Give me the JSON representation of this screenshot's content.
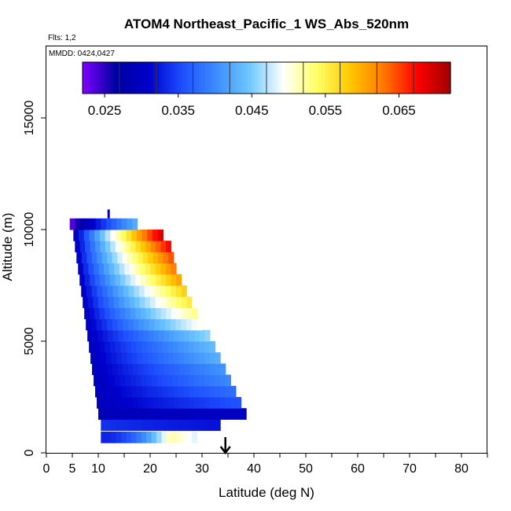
{
  "title": "ATOM4 Northeast_Pacific_1 WS_Abs_520nm",
  "flights_note": "Flts: 1,2",
  "dates_note": "MMDD: 0424,0427",
  "arrow_marker_lat": 34.5,
  "chart_data": {
    "type": "heatmap",
    "title": "ATOM4 Northeast_Pacific_1 WS_Abs_520nm",
    "xlabel": "Latitude (deg N)",
    "ylabel": "Altitude (m)",
    "xlim": [
      0,
      85
    ],
    "ylim": [
      0,
      18000
    ],
    "x_ticks": [
      0,
      5,
      10,
      20,
      30,
      40,
      50,
      60,
      70,
      80
    ],
    "y_ticks": [
      0,
      5000,
      10000,
      15000
    ],
    "colorbar": {
      "range": [
        0.022,
        0.072
      ],
      "ticks": [
        0.025,
        0.035,
        0.045,
        0.055,
        0.065
      ],
      "tick_labels": [
        "0.025",
        "0.035",
        "0.045",
        "0.055",
        "0.065"
      ],
      "palette": [
        "#7f00ff",
        "#0000a0",
        "#0000cd",
        "#1e50ff",
        "#3c8cff",
        "#6ec8ff",
        "#ffffff",
        "#ffff66",
        "#ffc800",
        "#ff7800",
        "#ff0000",
        "#a00000"
      ]
    },
    "rows": [
      {
        "alt": 700,
        "lat_min": 10.5,
        "lat_max": 29.0,
        "v_min": 0.033,
        "v_max": 0.048,
        "peak_lat": 24.0,
        "peak_val": 0.052
      },
      {
        "alt": 1250,
        "lat_min": 10.5,
        "lat_max": 33.5,
        "v_min": 0.034,
        "v_max": 0.032
      },
      {
        "alt": 1750,
        "lat_min": 10.0,
        "lat_max": 38.5,
        "v_min": 0.029,
        "v_max": 0.03
      },
      {
        "alt": 2250,
        "lat_min": 9.7,
        "lat_max": 37.5,
        "v_min": 0.029,
        "v_max": 0.036
      },
      {
        "alt": 2750,
        "lat_min": 9.4,
        "lat_max": 36.5,
        "v_min": 0.029,
        "v_max": 0.038
      },
      {
        "alt": 3250,
        "lat_min": 9.1,
        "lat_max": 35.5,
        "v_min": 0.029,
        "v_max": 0.04
      },
      {
        "alt": 3750,
        "lat_min": 8.8,
        "lat_max": 34.5,
        "v_min": 0.029,
        "v_max": 0.041
      },
      {
        "alt": 4250,
        "lat_min": 8.5,
        "lat_max": 33.5,
        "v_min": 0.029,
        "v_max": 0.043
      },
      {
        "alt": 4750,
        "lat_min": 8.2,
        "lat_max": 32.5,
        "v_min": 0.029,
        "v_max": 0.044
      },
      {
        "alt": 5250,
        "lat_min": 7.9,
        "lat_max": 31.5,
        "v_min": 0.029,
        "v_max": 0.046
      },
      {
        "alt": 5750,
        "lat_min": 7.6,
        "lat_max": 30.0,
        "v_min": 0.029,
        "v_max": 0.05
      },
      {
        "alt": 6250,
        "lat_min": 7.3,
        "lat_max": 29.0,
        "v_min": 0.029,
        "v_max": 0.053
      },
      {
        "alt": 6750,
        "lat_min": 7.0,
        "lat_max": 28.0,
        "v_min": 0.029,
        "v_max": 0.056
      },
      {
        "alt": 7250,
        "lat_min": 6.7,
        "lat_max": 27.0,
        "v_min": 0.029,
        "v_max": 0.058
      },
      {
        "alt": 7750,
        "lat_min": 6.4,
        "lat_max": 26.0,
        "v_min": 0.029,
        "v_max": 0.061
      },
      {
        "alt": 8250,
        "lat_min": 6.1,
        "lat_max": 25.0,
        "v_min": 0.029,
        "v_max": 0.063
      },
      {
        "alt": 8750,
        "lat_min": 5.8,
        "lat_max": 24.5,
        "v_min": 0.029,
        "v_max": 0.065
      },
      {
        "alt": 9250,
        "lat_min": 5.5,
        "lat_max": 24.0,
        "v_min": 0.028,
        "v_max": 0.068
      },
      {
        "alt": 9750,
        "lat_min": 5.2,
        "lat_max": 22.5,
        "v_min": 0.027,
        "v_max": 0.07
      },
      {
        "alt": 10250,
        "lat_min": 4.5,
        "lat_max": 17.5,
        "v_min": 0.022,
        "v_max": 0.043
      }
    ],
    "spikes": [
      {
        "lat": 12.0,
        "alt_min": 10500,
        "alt_max": 10900,
        "value": 0.03
      }
    ]
  }
}
